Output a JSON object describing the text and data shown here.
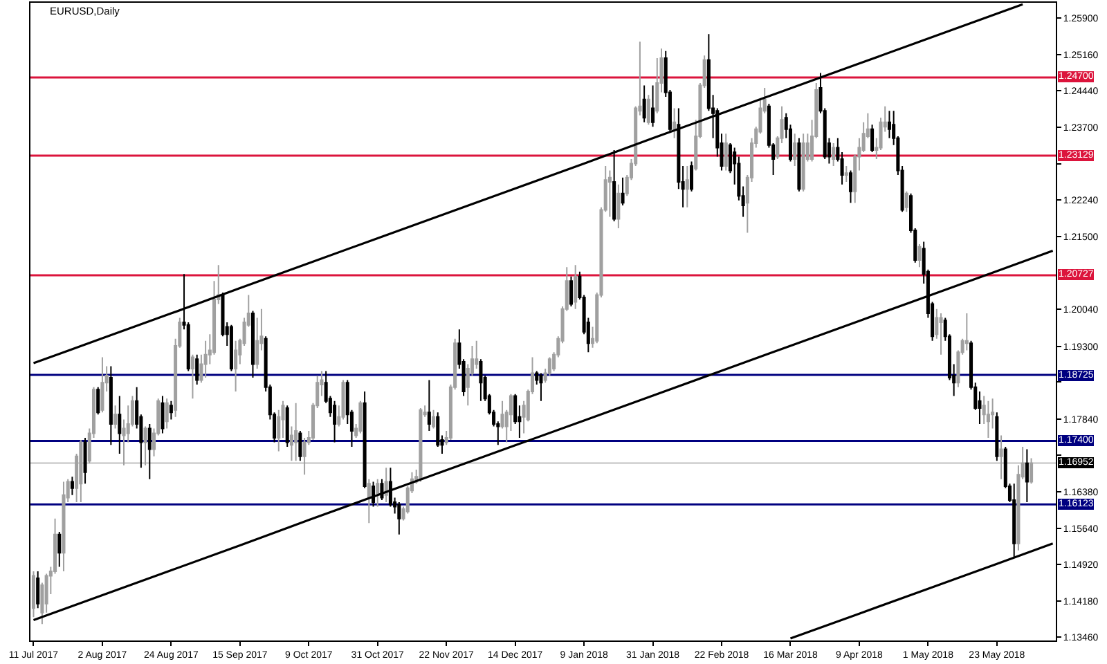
{
  "chart_data": {
    "type": "candlestick",
    "title": "EURUSD,Daily",
    "categories": [
      "11 Jul 2017",
      null,
      null,
      null,
      null,
      null,
      null,
      null,
      null,
      null,
      null,
      null,
      null,
      null,
      null,
      null,
      "2 Aug 2017",
      null,
      null,
      null,
      null,
      null,
      null,
      null,
      null,
      null,
      null,
      null,
      null,
      null,
      null,
      null,
      "24 Aug 2017",
      null,
      null,
      null,
      null,
      null,
      null,
      null,
      null,
      null,
      null,
      null,
      null,
      null,
      null,
      null,
      "15 Sep 2017",
      null,
      null,
      null,
      null,
      null,
      null,
      null,
      null,
      null,
      null,
      null,
      null,
      null,
      null,
      null,
      "9 Oct 2017",
      null,
      null,
      null,
      null,
      null,
      null,
      null,
      null,
      null,
      null,
      null,
      null,
      null,
      null,
      null,
      "31 Oct 2017",
      null,
      null,
      null,
      null,
      null,
      null,
      null,
      null,
      null,
      null,
      null,
      null,
      null,
      null,
      null,
      "22 Nov 2017",
      null,
      null,
      null,
      null,
      null,
      null,
      null,
      null,
      null,
      null,
      null,
      null,
      null,
      null,
      null,
      "14 Dec 2017",
      null,
      null,
      null,
      null,
      null,
      null,
      null,
      null,
      null,
      null,
      null,
      null,
      null,
      null,
      null,
      "9 Jan 2018",
      null,
      null,
      null,
      null,
      null,
      null,
      null,
      null,
      null,
      null,
      null,
      null,
      null,
      null,
      null,
      "31 Jan 2018",
      null,
      null,
      null,
      null,
      null,
      null,
      null,
      null,
      null,
      null,
      null,
      null,
      null,
      null,
      null,
      "22 Feb 2018",
      null,
      null,
      null,
      null,
      null,
      null,
      null,
      null,
      null,
      null,
      null,
      null,
      null,
      null,
      null,
      "16 Mar 2018",
      null,
      null,
      null,
      null,
      null,
      null,
      null,
      null,
      null,
      null,
      null,
      null,
      null,
      null,
      null,
      "9 Apr 2018",
      null,
      null,
      null,
      null,
      null,
      null,
      null,
      null,
      null,
      null,
      null,
      null,
      null,
      null,
      null,
      "1 May 2018",
      null,
      null,
      null,
      null,
      null,
      null,
      null,
      null,
      null,
      null,
      null,
      null,
      null,
      null,
      null,
      "23 May 2018",
      null,
      null,
      null,
      null,
      null,
      null,
      null,
      null,
      null,
      null,
      null,
      null,
      null
    ],
    "ohlc": [
      [
        1.1404,
        1.1478,
        1.1386,
        1.1469
      ],
      [
        1.1464,
        1.1478,
        1.1404,
        1.1413
      ],
      [
        1.1395,
        1.1455,
        1.1372,
        1.145
      ],
      [
        1.1413,
        1.1473,
        1.1395,
        1.1469
      ],
      [
        1.1469,
        1.1487,
        1.1432,
        1.1478
      ],
      [
        1.1478,
        1.1584,
        1.1473,
        1.1552
      ],
      [
        1.1552,
        1.1557,
        1.1487,
        1.1515
      ],
      [
        1.1515,
        1.1658,
        1.1478,
        1.1631
      ],
      [
        1.1626,
        1.1663,
        1.1617,
        1.1658
      ],
      [
        1.1658,
        1.1668,
        1.1631,
        1.1645
      ],
      [
        1.1645,
        1.1714,
        1.1617,
        1.1709
      ],
      [
        1.1654,
        1.1742,
        1.1617,
        1.1737
      ],
      [
        1.1737,
        1.1746,
        1.1654,
        1.1677
      ],
      [
        1.17,
        1.1765,
        1.1695,
        1.1755
      ],
      [
        1.1755,
        1.1848,
        1.1746,
        1.1843
      ],
      [
        1.1843,
        1.1848,
        1.1793,
        1.1797
      ],
      [
        1.1802,
        1.1908,
        1.1797,
        1.1857
      ],
      [
        1.1857,
        1.189,
        1.1839,
        1.1871
      ],
      [
        1.1867,
        1.189,
        1.1732,
        1.1774
      ],
      [
        1.1774,
        1.1811,
        1.1765,
        1.1793
      ],
      [
        1.1793,
        1.183,
        1.1714,
        1.1755
      ],
      [
        1.1751,
        1.1783,
        1.1691,
        1.1765
      ],
      [
        1.1755,
        1.1811,
        1.1737,
        1.1774
      ],
      [
        1.1774,
        1.183,
        1.1769,
        1.182
      ],
      [
        1.182,
        1.1848,
        1.1765,
        1.1774
      ],
      [
        1.1788,
        1.1793,
        1.1686,
        1.1737
      ],
      [
        1.1737,
        1.1769,
        1.1691,
        1.1765
      ],
      [
        1.1765,
        1.1774,
        1.1663,
        1.1723
      ],
      [
        1.1723,
        1.1765,
        1.1709,
        1.1755
      ],
      [
        1.1755,
        1.1825,
        1.1751,
        1.182
      ],
      [
        1.1816,
        1.183,
        1.1755,
        1.1765
      ],
      [
        1.1779,
        1.1825,
        1.1765,
        1.1816
      ],
      [
        1.1811,
        1.182,
        1.1783,
        1.1797
      ],
      [
        1.1802,
        1.1945,
        1.1788,
        1.1931
      ],
      [
        1.1931,
        1.1987,
        1.1927,
        1.1978
      ],
      [
        1.1978,
        1.2075,
        1.1964,
        1.1973
      ],
      [
        1.1973,
        1.1978,
        1.188,
        1.1885
      ],
      [
        1.1885,
        1.1913,
        1.1825,
        1.1908
      ],
      [
        1.1904,
        1.1913,
        1.1853,
        1.1862
      ],
      [
        1.1862,
        1.1913,
        1.1857,
        1.1894
      ],
      [
        1.1894,
        1.1941,
        1.1867,
        1.1913
      ],
      [
        1.1913,
        1.1954,
        1.1894,
        1.1922
      ],
      [
        1.1918,
        1.2061,
        1.1913,
        1.2024
      ],
      [
        1.2024,
        1.2093,
        1.2015,
        1.2033
      ],
      [
        1.2033,
        1.2038,
        1.195,
        1.1954
      ],
      [
        1.1969,
        1.1978,
        1.1931,
        1.1954
      ],
      [
        1.1969,
        1.1973,
        1.188,
        1.1885
      ],
      [
        1.1885,
        1.1941,
        1.1839,
        1.1922
      ],
      [
        1.1913,
        1.1945,
        1.1894,
        1.1941
      ],
      [
        1.1936,
        1.1987,
        1.1931,
        1.1978
      ],
      [
        1.1973,
        1.2033,
        1.1969,
        1.1996
      ],
      [
        1.1996,
        1.2001,
        1.1867,
        1.1894
      ],
      [
        1.1894,
        1.1987,
        1.1885,
        1.1941
      ],
      [
        1.1936,
        1.2005,
        1.1922,
        1.195
      ],
      [
        1.1945,
        1.195,
        1.1839,
        1.1848
      ],
      [
        1.1848,
        1.1853,
        1.1783,
        1.1793
      ],
      [
        1.1793,
        1.1797,
        1.1737,
        1.1746
      ],
      [
        1.1746,
        1.1802,
        1.1719,
        1.1788
      ],
      [
        1.1783,
        1.182,
        1.1746,
        1.1811
      ],
      [
        1.1806,
        1.1811,
        1.1728,
        1.1737
      ],
      [
        1.1732,
        1.1769,
        1.17,
        1.1751
      ],
      [
        1.1737,
        1.1816,
        1.17,
        1.176
      ],
      [
        1.1755,
        1.176,
        1.17,
        1.1709
      ],
      [
        1.1709,
        1.1746,
        1.1672,
        1.1737
      ],
      [
        1.1737,
        1.176,
        1.1732,
        1.1746
      ],
      [
        1.1746,
        1.1816,
        1.1742,
        1.1811
      ],
      [
        1.1811,
        1.1871,
        1.1806,
        1.1857
      ],
      [
        1.1853,
        1.188,
        1.183,
        1.1862
      ],
      [
        1.1857,
        1.188,
        1.1816,
        1.182
      ],
      [
        1.1825,
        1.183,
        1.1788,
        1.1797
      ],
      [
        1.1811,
        1.182,
        1.1737,
        1.1774
      ],
      [
        1.1774,
        1.1811,
        1.1769,
        1.1788
      ],
      [
        1.1788,
        1.1862,
        1.1783,
        1.1857
      ],
      [
        1.1857,
        1.1862,
        1.1774,
        1.1793
      ],
      [
        1.1797,
        1.1802,
        1.1728,
        1.176
      ],
      [
        1.1751,
        1.1774,
        1.1746,
        1.1765
      ],
      [
        1.176,
        1.182,
        1.1755,
        1.1816
      ],
      [
        1.1816,
        1.1839,
        1.1645,
        1.1649
      ],
      [
        1.1626,
        1.1663,
        1.1575,
        1.1654
      ],
      [
        1.1649,
        1.1658,
        1.1608,
        1.1617
      ],
      [
        1.1635,
        1.1663,
        1.1608,
        1.1654
      ],
      [
        1.1654,
        1.1663,
        1.1621,
        1.1626
      ],
      [
        1.1631,
        1.1686,
        1.1617,
        1.1658
      ],
      [
        1.1658,
        1.1686,
        1.1608,
        1.1612
      ],
      [
        1.1617,
        1.1626,
        1.1594,
        1.1608
      ],
      [
        1.1612,
        1.1617,
        1.1552,
        1.1584
      ],
      [
        1.1584,
        1.1608,
        1.158,
        1.1603
      ],
      [
        1.1598,
        1.1649,
        1.1594,
        1.1645
      ],
      [
        1.164,
        1.1677,
        1.1635,
        1.1663
      ],
      [
        1.1658,
        1.1682,
        1.1654,
        1.1668
      ],
      [
        1.1663,
        1.1806,
        1.1658,
        1.1802
      ],
      [
        1.1793,
        1.1811,
        1.1788,
        1.1797
      ],
      [
        1.1797,
        1.1862,
        1.176,
        1.1774
      ],
      [
        1.1769,
        1.1802,
        1.1765,
        1.1788
      ],
      [
        1.1788,
        1.1797,
        1.1728,
        1.1732
      ],
      [
        1.1742,
        1.1751,
        1.1714,
        1.1732
      ],
      [
        1.1737,
        1.176,
        1.1732,
        1.1746
      ],
      [
        1.1746,
        1.1853,
        1.1742,
        1.1848
      ],
      [
        1.1848,
        1.1945,
        1.1843,
        1.1936
      ],
      [
        1.1936,
        1.1964,
        1.1885,
        1.1894
      ],
      [
        1.1899,
        1.1904,
        1.183,
        1.1839
      ],
      [
        1.1848,
        1.1894,
        1.1811,
        1.1885
      ],
      [
        1.1876,
        1.1931,
        1.1871,
        1.1904
      ],
      [
        1.1894,
        1.1941,
        1.1885,
        1.1904
      ],
      [
        1.1899,
        1.1904,
        1.182,
        1.1857
      ],
      [
        1.1867,
        1.1871,
        1.182,
        1.1825
      ],
      [
        1.183,
        1.1834,
        1.1793,
        1.1797
      ],
      [
        1.1797,
        1.1802,
        1.1769,
        1.1774
      ],
      [
        1.1774,
        1.1779,
        1.1732,
        1.1769
      ],
      [
        1.1769,
        1.182,
        1.1765,
        1.1793
      ],
      [
        1.1769,
        1.1802,
        1.1737,
        1.1797
      ],
      [
        1.1793,
        1.1834,
        1.176,
        1.183
      ],
      [
        1.183,
        1.1834,
        1.1774,
        1.1779
      ],
      [
        1.1788,
        1.1811,
        1.1746,
        1.1779
      ],
      [
        1.1788,
        1.182,
        1.1755,
        1.1811
      ],
      [
        1.1783,
        1.1843,
        1.1779,
        1.1839
      ],
      [
        1.1839,
        1.1908,
        1.1834,
        1.1876
      ],
      [
        1.1876,
        1.188,
        1.1853,
        1.1862
      ],
      [
        1.1871,
        1.1876,
        1.182,
        1.1857
      ],
      [
        1.1862,
        1.1885,
        1.1857,
        1.1876
      ],
      [
        1.1876,
        1.1908,
        1.1871,
        1.1904
      ],
      [
        1.1885,
        1.1918,
        1.188,
        1.1913
      ],
      [
        1.1913,
        1.195,
        1.1908,
        1.1945
      ],
      [
        1.1941,
        1.201,
        1.1936,
        1.2005
      ],
      [
        1.2005,
        1.2089,
        1.2001,
        1.2061
      ],
      [
        1.2061,
        1.207,
        1.201,
        1.2015
      ],
      [
        1.2019,
        1.2093,
        1.2005,
        1.207
      ],
      [
        1.207,
        1.208,
        1.2024,
        1.2028
      ],
      [
        1.2028,
        1.2033,
        1.1954,
        1.1959
      ],
      [
        1.1978,
        1.1987,
        1.1918,
        1.1936
      ],
      [
        1.1936,
        1.1969,
        1.1927,
        1.1945
      ],
      [
        1.1941,
        1.2038,
        1.1936,
        1.2033
      ],
      [
        1.2033,
        1.2209,
        1.2028,
        1.2204
      ],
      [
        1.2204,
        1.2292,
        1.22,
        1.2264
      ],
      [
        1.226,
        1.2283,
        1.219,
        1.2269
      ],
      [
        1.226,
        1.2324,
        1.2181,
        1.2186
      ],
      [
        1.2186,
        1.2255,
        1.2167,
        1.2237
      ],
      [
        1.2237,
        1.2269,
        1.2213,
        1.2218
      ],
      [
        1.2237,
        1.2274,
        1.2232,
        1.2269
      ],
      [
        1.2269,
        1.2306,
        1.2264,
        1.2297
      ],
      [
        1.2297,
        1.2412,
        1.2292,
        1.2408
      ],
      [
        1.2403,
        1.2542,
        1.2394,
        1.2412
      ],
      [
        1.2426,
        1.2454,
        1.238,
        1.2389
      ],
      [
        1.238,
        1.2435,
        1.2375,
        1.2426
      ],
      [
        1.2408,
        1.2454,
        1.2371,
        1.238
      ],
      [
        1.2403,
        1.2509,
        1.2398,
        1.2459
      ],
      [
        1.2459,
        1.2528,
        1.244,
        1.2509
      ],
      [
        1.2509,
        1.2523,
        1.2431,
        1.244
      ],
      [
        1.244,
        1.2445,
        1.2361,
        1.2366
      ],
      [
        1.2366,
        1.2408,
        1.2348,
        1.238
      ],
      [
        1.2375,
        1.2408,
        1.2246,
        1.226
      ],
      [
        1.226,
        1.2292,
        1.2209,
        1.2246
      ],
      [
        1.2246,
        1.2292,
        1.2209,
        1.2264
      ],
      [
        1.2292,
        1.2301,
        1.2241,
        1.2246
      ],
      [
        1.2287,
        1.2385,
        1.2283,
        1.2352
      ],
      [
        1.2352,
        1.2459,
        1.2348,
        1.2454
      ],
      [
        1.2454,
        1.2514,
        1.2449,
        1.2505
      ],
      [
        1.2505,
        1.2557,
        1.2403,
        1.2408
      ],
      [
        1.2408,
        1.2435,
        1.2348,
        1.2398
      ],
      [
        1.2403,
        1.2408,
        1.2311,
        1.2329
      ],
      [
        1.2338,
        1.2357,
        1.2283,
        1.2292
      ],
      [
        1.2292,
        1.2357,
        1.2283,
        1.2338
      ],
      [
        1.2334,
        1.2338,
        1.2278,
        1.2283
      ],
      [
        1.232,
        1.2329,
        1.2255,
        1.2297
      ],
      [
        1.2297,
        1.2311,
        1.2223,
        1.2232
      ],
      [
        1.2232,
        1.2251,
        1.219,
        1.2213
      ],
      [
        1.2218,
        1.2274,
        1.2158,
        1.2269
      ],
      [
        1.2269,
        1.2348,
        1.226,
        1.2338
      ],
      [
        1.2338,
        1.2371,
        1.2329,
        1.2366
      ],
      [
        1.2361,
        1.2426,
        1.2357,
        1.2408
      ],
      [
        1.2403,
        1.2449,
        1.2398,
        1.2426
      ],
      [
        1.2412,
        1.2417,
        1.2329,
        1.2334
      ],
      [
        1.2334,
        1.2338,
        1.2274,
        1.2306
      ],
      [
        1.2311,
        1.2352,
        1.2306,
        1.2348
      ],
      [
        1.2348,
        1.2412,
        1.2338,
        1.2385
      ],
      [
        1.2389,
        1.2398,
        1.2348,
        1.2366
      ],
      [
        1.2366,
        1.2375,
        1.2301,
        1.2306
      ],
      [
        1.2306,
        1.2357,
        1.2292,
        1.2338
      ],
      [
        1.2338,
        1.2348,
        1.2241,
        1.2246
      ],
      [
        1.2246,
        1.2357,
        1.2241,
        1.2338
      ],
      [
        1.2306,
        1.2357,
        1.2301,
        1.2338
      ],
      [
        1.2306,
        1.2385,
        1.2301,
        1.2352
      ],
      [
        1.2352,
        1.2459,
        1.2348,
        1.2445
      ],
      [
        1.2449,
        1.2479,
        1.2398,
        1.2403
      ],
      [
        1.2403,
        1.2408,
        1.2306,
        1.2311
      ],
      [
        1.2338,
        1.2348,
        1.2297,
        1.2311
      ],
      [
        1.2306,
        1.2338,
        1.2292,
        1.2329
      ],
      [
        1.2329,
        1.2348,
        1.2301,
        1.2306
      ],
      [
        1.2306,
        1.232,
        1.2255,
        1.2274
      ],
      [
        1.2274,
        1.2292,
        1.226,
        1.2278
      ],
      [
        1.2278,
        1.2283,
        1.2218,
        1.2241
      ],
      [
        1.2241,
        1.2315,
        1.2218,
        1.2311
      ],
      [
        1.2311,
        1.2348,
        1.2283,
        1.2329
      ],
      [
        1.2324,
        1.238,
        1.232,
        1.2357
      ],
      [
        1.2352,
        1.2398,
        1.2348,
        1.2366
      ],
      [
        1.2366,
        1.2375,
        1.232,
        1.2324
      ],
      [
        1.2324,
        1.2348,
        1.2306,
        1.2329
      ],
      [
        1.2329,
        1.2389,
        1.2324,
        1.238
      ],
      [
        1.2371,
        1.2412,
        1.2361,
        1.238
      ],
      [
        1.238,
        1.2403,
        1.2348,
        1.2366
      ],
      [
        1.2375,
        1.2403,
        1.2334,
        1.2348
      ],
      [
        1.2348,
        1.2352,
        1.2274,
        1.2283
      ],
      [
        1.2283,
        1.2292,
        1.22,
        1.2204
      ],
      [
        1.2209,
        1.2241,
        1.22,
        1.2237
      ],
      [
        1.2232,
        1.2237,
        1.2158,
        1.2163
      ],
      [
        1.2163,
        1.2167,
        1.2098,
        1.2103
      ],
      [
        1.2103,
        1.2135,
        1.2089,
        1.213
      ],
      [
        1.2126,
        1.214,
        1.2056,
        1.2075
      ],
      [
        1.208,
        1.2084,
        1.1987,
        1.1996
      ],
      [
        1.2015,
        1.2019,
        1.1941,
        1.195
      ],
      [
        1.1954,
        1.2005,
        1.1945,
        1.1987
      ],
      [
        1.1978,
        1.1996,
        1.1913,
        1.1987
      ],
      [
        1.1982,
        1.1987,
        1.1941,
        1.195
      ],
      [
        1.195,
        1.1954,
        1.1862,
        1.1867
      ],
      [
        1.1871,
        1.1894,
        1.183,
        1.1857
      ],
      [
        1.1857,
        1.1922,
        1.1848,
        1.1918
      ],
      [
        1.1918,
        1.1945,
        1.1913,
        1.1941
      ],
      [
        1.1936,
        1.1996,
        1.1922,
        1.1941
      ],
      [
        1.1936,
        1.1941,
        1.1843,
        1.1848
      ],
      [
        1.1848,
        1.1857,
        1.1802,
        1.1806
      ],
      [
        1.182,
        1.1839,
        1.1774,
        1.1806
      ],
      [
        1.1793,
        1.183,
        1.1774,
        1.1811
      ],
      [
        1.1779,
        1.182,
        1.1746,
        1.1793
      ],
      [
        1.1793,
        1.1825,
        1.1765,
        1.1797
      ],
      [
        1.1788,
        1.1797,
        1.17,
        1.1709
      ],
      [
        1.1709,
        1.1751,
        1.1663,
        1.1723
      ],
      [
        1.1723,
        1.1728,
        1.1645,
        1.1649
      ],
      [
        1.1649,
        1.1654,
        1.1617,
        1.1621
      ],
      [
        1.1621,
        1.1654,
        1.1506,
        1.1534
      ],
      [
        1.1534,
        1.1691,
        1.152,
        1.1672
      ],
      [
        1.1668,
        1.1728,
        1.1663,
        1.1695
      ],
      [
        1.1695,
        1.1723,
        1.1617,
        1.1658
      ],
      [
        1.1658,
        1.1705,
        1.1654,
        1.1695
      ],
      null,
      null,
      null,
      null,
      null
    ],
    "colors": [
      "#a0a0a0",
      "#000000",
      "#a0a0a0",
      "#a0a0a0",
      "#a0a0a0",
      "#a0a0a0",
      "#000000",
      "#a0a0a0",
      "#a0a0a0",
      "#000000",
      "#a0a0a0",
      "#a0a0a0",
      "#000000",
      "#a0a0a0",
      "#a0a0a0",
      "#000000",
      "#a0a0a0",
      "#a0a0a0",
      "#000000",
      "#a0a0a0",
      "#000000",
      "#a0a0a0",
      "#a0a0a0",
      "#a0a0a0",
      "#000000",
      "#000000",
      "#a0a0a0",
      "#000000",
      "#a0a0a0",
      "#a0a0a0",
      "#000000",
      "#a0a0a0",
      "#000000",
      "#a0a0a0",
      "#a0a0a0",
      "#000000",
      "#000000",
      "#a0a0a0",
      "#000000",
      "#a0a0a0",
      "#a0a0a0",
      "#a0a0a0",
      "#a0a0a0",
      "#a0a0a0",
      "#000000",
      "#000000",
      "#000000",
      "#a0a0a0",
      "#a0a0a0",
      "#a0a0a0",
      "#a0a0a0",
      "#000000",
      "#a0a0a0",
      "#a0a0a0",
      "#000000",
      "#000000",
      "#000000",
      "#a0a0a0",
      "#a0a0a0",
      "#000000",
      "#a0a0a0",
      "#a0a0a0",
      "#000000",
      "#a0a0a0",
      "#a0a0a0",
      "#a0a0a0",
      "#a0a0a0",
      "#a0a0a0",
      "#000000",
      "#000000",
      "#000000",
      "#a0a0a0",
      "#a0a0a0",
      "#000000",
      "#000000",
      "#a0a0a0",
      "#a0a0a0",
      "#000000",
      "#a0a0a0",
      "#000000",
      "#a0a0a0",
      "#000000",
      "#a0a0a0",
      "#000000",
      "#000000",
      "#000000",
      "#a0a0a0",
      "#a0a0a0",
      "#a0a0a0",
      "#a0a0a0",
      "#a0a0a0",
      "#a0a0a0",
      "#000000",
      "#a0a0a0",
      "#000000",
      "#000000",
      "#a0a0a0",
      "#a0a0a0",
      "#a0a0a0",
      "#000000",
      "#000000",
      "#a0a0a0",
      "#a0a0a0",
      "#a0a0a0",
      "#000000",
      "#000000",
      "#000000",
      "#000000",
      "#000000",
      "#a0a0a0",
      "#a0a0a0",
      "#a0a0a0",
      "#000000",
      "#000000",
      "#a0a0a0",
      "#a0a0a0",
      "#a0a0a0",
      "#000000",
      "#000000",
      "#a0a0a0",
      "#a0a0a0",
      "#a0a0a0",
      "#a0a0a0",
      "#a0a0a0",
      "#a0a0a0",
      "#000000",
      "#a0a0a0",
      "#000000",
      "#000000",
      "#000000",
      "#a0a0a0",
      "#a0a0a0",
      "#a0a0a0",
      "#a0a0a0",
      "#a0a0a0",
      "#000000",
      "#a0a0a0",
      "#000000",
      "#a0a0a0",
      "#a0a0a0",
      "#a0a0a0",
      "#a0a0a0",
      "#000000",
      "#a0a0a0",
      "#000000",
      "#a0a0a0",
      "#a0a0a0",
      "#000000",
      "#000000",
      "#a0a0a0",
      "#000000",
      "#000000",
      "#a0a0a0",
      "#000000",
      "#a0a0a0",
      "#a0a0a0",
      "#a0a0a0",
      "#000000",
      "#000000",
      "#000000",
      "#000000",
      "#a0a0a0",
      "#000000",
      "#000000",
      "#000000",
      "#000000",
      "#a0a0a0",
      "#a0a0a0",
      "#a0a0a0",
      "#a0a0a0",
      "#a0a0a0",
      "#000000",
      "#000000",
      "#a0a0a0",
      "#a0a0a0",
      "#000000",
      "#000000",
      "#a0a0a0",
      "#000000",
      "#a0a0a0",
      "#a0a0a0",
      "#a0a0a0",
      "#a0a0a0",
      "#000000",
      "#000000",
      "#000000",
      "#a0a0a0",
      "#000000",
      "#000000",
      "#a0a0a0",
      "#000000",
      "#a0a0a0",
      "#a0a0a0",
      "#a0a0a0",
      "#a0a0a0",
      "#000000",
      "#a0a0a0",
      "#a0a0a0",
      "#a0a0a0",
      "#000000",
      "#000000",
      "#000000",
      "#000000",
      "#a0a0a0",
      "#000000",
      "#000000",
      "#a0a0a0",
      "#000000",
      "#000000",
      "#000000",
      "#a0a0a0",
      "#a0a0a0",
      "#000000",
      "#000000",
      "#000000",
      "#a0a0a0",
      "#a0a0a0",
      "#a0a0a0",
      "#000000",
      "#000000",
      "#000000",
      "#a0a0a0",
      "#a0a0a0",
      "#a0a0a0",
      "#000000",
      "#a0a0a0",
      "#000000",
      "#000000",
      "#000000",
      "#a0a0a0",
      "#a0a0a0",
      "#000000",
      "#a0a0a0",
      null,
      null,
      null,
      null,
      null
    ],
    "series": [
      {
        "type": "line",
        "color": "#000000",
        "values": [
          1.1896,
          null,
          null,
          null,
          null,
          null,
          null,
          null,
          null,
          null,
          null,
          null,
          null,
          null,
          null,
          null,
          1.1946,
          null,
          null,
          null,
          null,
          null,
          null,
          null,
          null,
          null,
          null,
          null,
          null,
          null,
          null,
          null,
          1.1996,
          null,
          null,
          null,
          null,
          null,
          null,
          null,
          null,
          null,
          null,
          null,
          null,
          null,
          null,
          null,
          1.2047,
          null,
          null,
          null,
          null,
          null,
          null,
          null,
          null,
          null,
          null,
          null,
          null,
          null,
          null,
          null,
          1.2097,
          null,
          null,
          null,
          null,
          null,
          null,
          null,
          null,
          null,
          null,
          null,
          null,
          null,
          null,
          null,
          1.2147,
          null,
          null,
          null,
          null,
          null,
          null,
          null,
          null,
          null,
          null,
          null,
          null,
          null,
          null,
          null,
          1.2197,
          null,
          null,
          null,
          null,
          null,
          null,
          null,
          null,
          null,
          null,
          null,
          null,
          null,
          null,
          null,
          1.2247,
          null,
          null,
          null,
          null,
          null,
          null,
          null,
          null,
          null,
          null,
          null,
          null,
          null,
          null,
          null,
          1.2297,
          null,
          null,
          null,
          null,
          null,
          null,
          null,
          null,
          null,
          null,
          null,
          null,
          null,
          null,
          null,
          1.2348,
          null,
          null,
          null,
          null,
          null,
          null,
          null,
          null,
          null,
          null,
          null,
          null,
          null,
          null,
          null,
          1.2398,
          null,
          null,
          null,
          null,
          null,
          null,
          null,
          null,
          null,
          null,
          null,
          null,
          null,
          null,
          null,
          1.2448,
          null,
          null,
          null,
          null,
          null,
          null,
          null,
          null,
          null,
          null,
          null,
          null,
          null,
          null,
          null,
          1.2498,
          null,
          null,
          null,
          null,
          null,
          null,
          null,
          null,
          null,
          null,
          null,
          null,
          null,
          null,
          null,
          1.2548,
          null,
          null,
          null,
          null,
          null,
          null,
          null,
          null,
          null,
          null,
          null,
          null,
          null,
          null,
          null,
          1.2598,
          null,
          null,
          null,
          null,
          null,
          1.2617,
          null,
          null,
          null,
          null,
          null,
          null,
          null
        ]
      },
      {
        "type": "line",
        "color": "#000000",
        "values": [
          1.138,
          null,
          null,
          null,
          null,
          null,
          null,
          null,
          null,
          null,
          null,
          null,
          null,
          null,
          null,
          null,
          1.143,
          null,
          null,
          null,
          null,
          null,
          null,
          null,
          null,
          null,
          null,
          null,
          null,
          null,
          null,
          null,
          1.148,
          null,
          null,
          null,
          null,
          null,
          null,
          null,
          null,
          null,
          null,
          null,
          null,
          null,
          null,
          null,
          1.153,
          null,
          null,
          null,
          null,
          null,
          null,
          null,
          null,
          null,
          null,
          null,
          null,
          null,
          null,
          null,
          1.1581,
          null,
          null,
          null,
          null,
          null,
          null,
          null,
          null,
          null,
          null,
          null,
          null,
          null,
          null,
          null,
          1.1631,
          null,
          null,
          null,
          null,
          null,
          null,
          null,
          null,
          null,
          null,
          null,
          null,
          null,
          null,
          null,
          1.1681,
          null,
          null,
          null,
          null,
          null,
          null,
          null,
          null,
          null,
          null,
          null,
          null,
          null,
          null,
          null,
          1.1731,
          null,
          null,
          null,
          null,
          null,
          null,
          null,
          null,
          null,
          null,
          null,
          null,
          null,
          null,
          null,
          1.1781,
          null,
          null,
          null,
          null,
          null,
          null,
          null,
          null,
          null,
          null,
          null,
          null,
          null,
          null,
          null,
          1.1831,
          null,
          null,
          null,
          null,
          null,
          null,
          null,
          null,
          null,
          null,
          null,
          null,
          null,
          null,
          null,
          1.1881,
          null,
          null,
          null,
          null,
          null,
          null,
          null,
          null,
          null,
          null,
          null,
          null,
          null,
          null,
          null,
          1.1931,
          null,
          null,
          null,
          null,
          null,
          null,
          null,
          null,
          null,
          null,
          null,
          null,
          null,
          null,
          null,
          1.1981,
          null,
          null,
          null,
          null,
          null,
          null,
          null,
          null,
          null,
          null,
          null,
          null,
          null,
          null,
          null,
          1.2031,
          null,
          null,
          null,
          null,
          null,
          null,
          null,
          null,
          null,
          null,
          null,
          null,
          null,
          null,
          null,
          1.2081,
          null,
          null,
          null,
          null,
          null,
          null,
          null,
          null,
          null,
          null,
          null,
          null,
          1.2122
        ]
      },
      {
        "type": "line",
        "color": "#000000",
        "values": [
          null,
          null,
          null,
          null,
          null,
          null,
          null,
          null,
          null,
          null,
          null,
          null,
          null,
          null,
          null,
          null,
          null,
          null,
          null,
          null,
          null,
          null,
          null,
          null,
          null,
          null,
          null,
          null,
          null,
          null,
          null,
          null,
          null,
          null,
          null,
          null,
          null,
          null,
          null,
          null,
          null,
          null,
          null,
          null,
          null,
          null,
          null,
          null,
          null,
          null,
          null,
          null,
          null,
          null,
          null,
          null,
          null,
          null,
          null,
          null,
          null,
          null,
          null,
          null,
          null,
          null,
          null,
          null,
          null,
          null,
          null,
          null,
          null,
          null,
          null,
          null,
          null,
          null,
          null,
          null,
          null,
          null,
          null,
          null,
          null,
          null,
          null,
          null,
          null,
          null,
          null,
          null,
          null,
          null,
          null,
          null,
          null,
          null,
          null,
          null,
          null,
          null,
          null,
          null,
          null,
          null,
          null,
          null,
          null,
          null,
          null,
          null,
          null,
          null,
          null,
          null,
          null,
          null,
          null,
          null,
          null,
          null,
          null,
          null,
          null,
          null,
          null,
          null,
          null,
          null,
          null,
          null,
          null,
          null,
          null,
          null,
          null,
          null,
          null,
          null,
          null,
          null,
          null,
          null,
          null,
          null,
          null,
          null,
          null,
          null,
          null,
          null,
          null,
          null,
          null,
          null,
          null,
          null,
          null,
          null,
          null,
          null,
          null,
          null,
          null,
          null,
          null,
          null,
          null,
          null,
          null,
          null,
          null,
          null,
          null,
          null,
          1.1343,
          null,
          null,
          null,
          null,
          null,
          null,
          null,
          null,
          null,
          null,
          null,
          null,
          null,
          null,
          null,
          1.1393,
          null,
          null,
          null,
          null,
          null,
          null,
          null,
          null,
          null,
          null,
          null,
          null,
          null,
          null,
          null,
          1.1443,
          null,
          null,
          null,
          null,
          null,
          null,
          null,
          null,
          null,
          null,
          null,
          null,
          null,
          null,
          null,
          1.1493,
          null,
          null,
          null,
          null,
          null,
          null,
          null,
          null,
          null,
          null,
          null,
          null,
          1.1534
        ]
      }
    ],
    "ref_lines": [
      {
        "axis": "y",
        "value": 1.247,
        "label": "1.24700",
        "color": "#dc143c"
      },
      {
        "axis": "y",
        "value": 1.23129,
        "label": "1.23129",
        "color": "#dc143c"
      },
      {
        "axis": "y",
        "value": 1.20727,
        "label": "1.20727",
        "color": "#dc143c"
      },
      {
        "axis": "y",
        "value": 1.18725,
        "label": "1.18725",
        "color": "#000080"
      },
      {
        "axis": "y",
        "value": 1.174,
        "label": "1.17400",
        "color": "#000080"
      },
      {
        "axis": "y",
        "value": 1.16123,
        "label": "1.16123",
        "color": "#000080"
      },
      {
        "axis": "y",
        "value": 1.16952,
        "label": "1.16952",
        "color": "#c0c0c0"
      }
    ],
    "ylim": [
      1.1339,
      1.262
    ],
    "yticks": [
      {
        "value": 1.259,
        "label": "1.25900"
      },
      {
        "value": 1.2516,
        "label": "1.25160"
      },
      {
        "value": 1.2444,
        "label": "1.24440"
      },
      {
        "value": 1.237,
        "label": "1.23700"
      },
      {
        "value": 1.2296,
        "label": null
      },
      {
        "value": 1.2224,
        "label": "1.22240"
      },
      {
        "value": 1.215,
        "label": "1.21500"
      },
      {
        "value": 1.2004,
        "label": "1.20040"
      },
      {
        "value": 1.193,
        "label": "1.19300"
      },
      {
        "value": 1.1858,
        "label": null
      },
      {
        "value": 1.1784,
        "label": "1.17840"
      },
      {
        "value": 1.1712,
        "label": null
      },
      {
        "value": 1.1638,
        "label": "1.16380"
      },
      {
        "value": 1.1564,
        "label": "1.15640"
      },
      {
        "value": 1.1492,
        "label": "1.14920"
      },
      {
        "value": 1.1418,
        "label": "1.14180"
      },
      {
        "value": 1.1346,
        "label": "1.13460"
      }
    ]
  }
}
